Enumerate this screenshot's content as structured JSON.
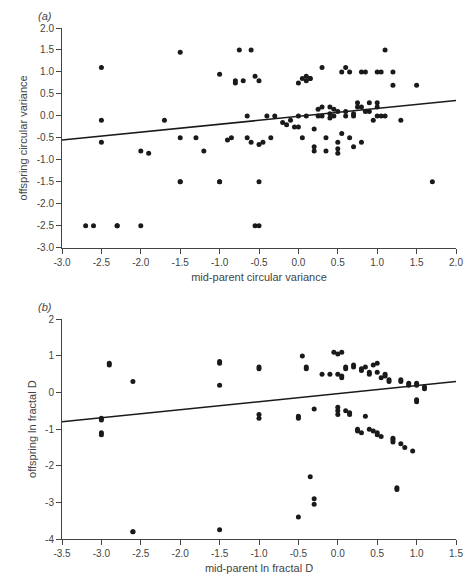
{
  "chart_data": [
    {
      "type": "scatter",
      "annotations": [
        "(a)"
      ],
      "xlabel": "mid-parent circular variance",
      "ylabel": "offspring circular variance",
      "xlim": [
        -3.0,
        2.0
      ],
      "ylim": [
        -3.0,
        2.0
      ],
      "xticks": [
        {
          "value": -3.0,
          "label": "-3.0"
        },
        -2.5,
        {
          "value": -2.0,
          "label": "-2.0"
        },
        -1.5,
        {
          "value": -1.0,
          "label": "-1.0"
        },
        -0.5,
        {
          "value": 0.0,
          "label": "0.0"
        },
        0.5,
        {
          "value": 1.0,
          "label": "1.0"
        },
        1.5,
        {
          "value": 2.0,
          "label": "2.0"
        }
      ],
      "yticks": [
        {
          "value": -3.0,
          "label": "-3.0"
        },
        -2.5,
        {
          "value": -2.0,
          "label": "-2.0"
        },
        -1.5,
        {
          "value": -1.0,
          "label": "-1.0"
        },
        -0.5,
        {
          "value": 0.0,
          "label": "0.0"
        },
        0.5,
        {
          "value": 1.0,
          "label": "1.0"
        },
        1.5,
        {
          "value": 2.0,
          "label": "2.0"
        }
      ],
      "grid": false,
      "series": [
        {
          "type": "scatter",
          "color": "#1a1a1a",
          "x": [
            -2.7,
            -2.6,
            -2.5,
            -2.5,
            -2.5,
            -2.3,
            -2.3,
            -2.0,
            -2.0,
            -1.9,
            -1.7,
            -1.5,
            -1.5,
            -1.5,
            -1.5,
            -1.3,
            -1.2,
            -1.0,
            -1.0,
            -1.0,
            -0.9,
            -0.85,
            -0.8,
            -0.8,
            -0.75,
            -0.7,
            -0.65,
            -0.65,
            -0.6,
            -0.6,
            -0.55,
            -0.55,
            -0.5,
            -0.5,
            -0.5,
            -0.5,
            -0.45,
            -0.4,
            -0.35,
            -0.3,
            -0.2,
            -0.15,
            -0.1,
            -0.05,
            0.0,
            0.0,
            0.0,
            0.05,
            0.05,
            0.1,
            0.1,
            0.1,
            0.15,
            0.15,
            0.2,
            0.2,
            0.2,
            0.25,
            0.25,
            0.3,
            0.3,
            0.3,
            0.35,
            0.35,
            0.4,
            0.4,
            0.4,
            0.45,
            0.45,
            0.5,
            0.5,
            0.5,
            0.5,
            0.55,
            0.55,
            0.6,
            0.6,
            0.6,
            0.65,
            0.65,
            0.7,
            0.7,
            0.7,
            0.75,
            0.75,
            0.8,
            0.8,
            0.8,
            0.85,
            0.85,
            0.9,
            0.9,
            0.95,
            1.0,
            1.0,
            1.0,
            1.0,
            1.05,
            1.05,
            1.1,
            1.1,
            1.2,
            1.2,
            1.3,
            1.5,
            1.7
          ],
          "values": [
            -2.5,
            -2.5,
            -0.1,
            -0.6,
            1.1,
            -2.5,
            -2.5,
            -0.8,
            -2.5,
            -0.85,
            -0.1,
            -0.5,
            -1.5,
            -1.5,
            1.45,
            -0.5,
            -0.8,
            -1.5,
            -1.5,
            0.95,
            -0.55,
            -0.5,
            0.75,
            0.8,
            1.5,
            0.8,
            0.0,
            -0.5,
            -0.6,
            1.5,
            0.9,
            -2.5,
            -2.5,
            -1.5,
            -0.65,
            0.8,
            -0.6,
            0.0,
            -0.5,
            0.0,
            -0.15,
            -0.2,
            -0.1,
            -0.25,
            -0.25,
            0.0,
            0.75,
            0.85,
            -0.5,
            0.8,
            0.9,
            0.0,
            0.85,
            0.85,
            -0.7,
            -0.8,
            -0.3,
            0.0,
            0.15,
            0.0,
            0.2,
            1.1,
            -0.5,
            -0.8,
            0.05,
            -0.05,
            0.2,
            0.0,
            0.15,
            -0.6,
            -0.75,
            -0.85,
            0.1,
            -0.4,
            1.0,
            0.1,
            0.0,
            1.1,
            1.0,
            -0.5,
            -0.7,
            0.0,
            0.05,
            0.3,
            0.2,
            1.0,
            -0.6,
            0.2,
            0.1,
            1.0,
            0.1,
            0.3,
            -0.1,
            0.0,
            0.2,
            0.3,
            1.0,
            0.0,
            1.0,
            0.0,
            1.5,
            0.7,
            1.0,
            -0.1,
            0.7,
            -1.5
          ]
        },
        {
          "type": "line",
          "color": "#1a1a1a",
          "x": [
            -3.0,
            2.0
          ],
          "values": [
            -0.55,
            0.35
          ]
        }
      ]
    },
    {
      "type": "scatter",
      "annotations": [
        "(b)"
      ],
      "xlabel": "mid-parent ln fractal D",
      "ylabel": "offspring ln fractal D",
      "xlim": [
        -3.5,
        1.5
      ],
      "ylim": [
        -4.0,
        2.0
      ],
      "xticks": [
        -3.5,
        {
          "value": -3.0,
          "label": "-3.0"
        },
        -2.5,
        {
          "value": -2.0,
          "label": "-2.0"
        },
        -1.5,
        {
          "value": -1.0,
          "label": "-1.0"
        },
        -0.5,
        {
          "value": 0.0,
          "label": "0.0"
        },
        0.5,
        {
          "value": 1.0,
          "label": "1.0"
        },
        1.5
      ],
      "yticks": [
        -4,
        -3,
        -2,
        -1,
        0,
        1,
        2
      ],
      "grid": false,
      "series": [
        {
          "type": "scatter",
          "color": "#1a1a1a",
          "x": [
            -3.0,
            -3.0,
            -3.0,
            -3.0,
            -2.9,
            -2.9,
            -2.6,
            -2.6,
            -2.6,
            -1.5,
            -1.5,
            -1.5,
            -1.5,
            -1.0,
            -1.0,
            -1.0,
            -1.0,
            -0.5,
            -0.5,
            -0.5,
            -0.45,
            -0.4,
            -0.4,
            -0.35,
            -0.3,
            -0.3,
            -0.3,
            -0.2,
            -0.1,
            -0.05,
            0.0,
            0.0,
            0.0,
            0.0,
            0.0,
            0.05,
            0.05,
            0.05,
            0.1,
            0.1,
            0.1,
            0.15,
            0.15,
            0.2,
            0.2,
            0.25,
            0.25,
            0.3,
            0.3,
            0.3,
            0.35,
            0.35,
            0.4,
            0.4,
            0.4,
            0.45,
            0.45,
            0.5,
            0.5,
            0.5,
            0.5,
            0.55,
            0.55,
            0.6,
            0.6,
            0.65,
            0.65,
            0.7,
            0.7,
            0.7,
            0.75,
            0.75,
            0.8,
            0.8,
            0.8,
            0.85,
            0.9,
            0.9,
            0.95,
            1.0,
            1.0,
            1.0,
            1.0,
            1.1,
            1.1
          ],
          "values": [
            -0.7,
            -0.75,
            -1.1,
            -1.15,
            0.8,
            0.75,
            0.3,
            -3.8,
            -3.8,
            0.8,
            0.85,
            0.2,
            -3.75,
            -0.7,
            -0.6,
            0.65,
            0.7,
            -0.7,
            -0.65,
            -3.4,
            1.0,
            0.7,
            0.65,
            -2.3,
            -3.05,
            -0.45,
            -2.9,
            0.5,
            0.5,
            1.1,
            0.5,
            -0.4,
            -0.5,
            -0.6,
            1.05,
            0.4,
            0.45,
            1.1,
            0.65,
            0.7,
            -0.5,
            -0.55,
            -0.6,
            0.7,
            0.75,
            -1.0,
            -1.05,
            -1.1,
            0.6,
            0.65,
            0.7,
            -0.65,
            0.5,
            0.55,
            -1.0,
            -1.05,
            0.75,
            0.8,
            -1.1,
            -1.15,
            0.55,
            -1.2,
            0.4,
            0.45,
            0.5,
            0.3,
            0.35,
            -1.25,
            -1.3,
            -1.35,
            -2.6,
            -2.65,
            -1.4,
            0.3,
            0.35,
            -1.5,
            0.2,
            0.25,
            -1.6,
            0.2,
            0.25,
            -0.2,
            -0.25,
            0.1,
            0.15
          ]
        },
        {
          "type": "line",
          "color": "#1a1a1a",
          "x": [
            -3.5,
            1.5
          ],
          "values": [
            -0.8,
            0.3
          ]
        }
      ]
    }
  ]
}
